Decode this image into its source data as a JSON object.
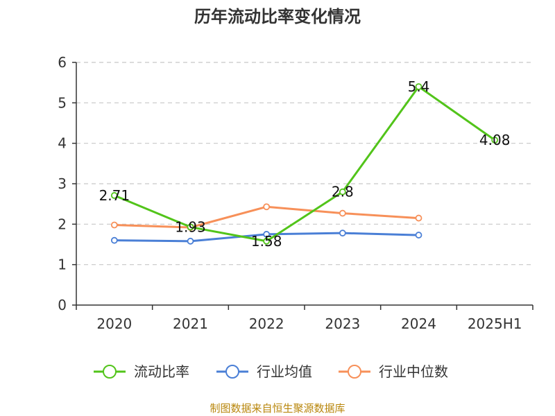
{
  "chart_data": {
    "type": "line",
    "title": "历年流动比率变化情况",
    "categories": [
      "2020",
      "2021",
      "2022",
      "2023",
      "2024",
      "2025H1"
    ],
    "ylim": [
      0,
      6
    ],
    "yticks": [
      0,
      1,
      2,
      3,
      4,
      5,
      6
    ],
    "grid": true,
    "legend_position": "bottom",
    "series": [
      {
        "name": "流动比率",
        "color": "#52c41a",
        "values": [
          2.71,
          1.93,
          1.58,
          2.8,
          5.4,
          4.08
        ],
        "labels": [
          "2.71",
          "1.93",
          "1.58",
          "2.8",
          "5.4",
          "4.08"
        ]
      },
      {
        "name": "行业均值",
        "color": "#4a7fd6",
        "values": [
          1.6,
          1.58,
          1.75,
          1.78,
          1.73,
          null
        ]
      },
      {
        "name": "行业中位数",
        "color": "#f79059",
        "values": [
          1.98,
          1.92,
          2.43,
          2.27,
          2.15,
          null
        ]
      }
    ],
    "source": "制图数据来自恒生聚源数据库"
  }
}
